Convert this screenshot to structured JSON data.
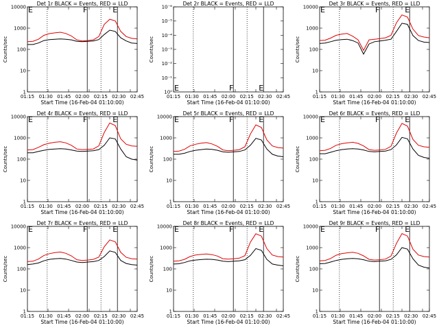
{
  "chart_data": [
    {
      "panel": "1r",
      "title": "Det 1r BLACK = Events, RED = LLD",
      "type": "line",
      "ylabel": "Counts/sec",
      "xlabel": "Start Time (16-Feb-04 01:10:00)",
      "x_ticks": [
        "01:15",
        "01:30",
        "01:45",
        "02:00",
        "02:15",
        "02:30",
        "02:45"
      ],
      "y_ticks": [
        "1",
        "10",
        "100",
        "1000",
        "10000"
      ],
      "ylim": [
        1,
        10000
      ],
      "yscale": "log",
      "markers": [
        "E",
        "F",
        "E"
      ],
      "time": [
        0,
        5,
        10,
        15,
        20,
        25,
        30,
        35,
        40,
        45,
        50,
        55,
        60,
        65,
        70,
        75,
        80,
        85,
        90,
        95,
        100
      ],
      "series": [
        {
          "color": "#000000",
          "values": [
            170,
            170,
            200,
            260,
            290,
            300,
            310,
            300,
            280,
            240,
            230,
            240,
            250,
            290,
            500,
            800,
            700,
            350,
            250,
            200,
            190
          ]
        },
        {
          "color": "#e00000",
          "values": [
            230,
            240,
            300,
            460,
            550,
            600,
            640,
            560,
            430,
            280,
            250,
            260,
            280,
            400,
            1500,
            2600,
            2200,
            700,
            400,
            330,
            310
          ]
        }
      ]
    },
    {
      "panel": "2r",
      "title": "Det 2r BLACK = Events, RED = LLD",
      "type": "line",
      "ylabel": "Counts/sec",
      "xlabel": "Start Time (16-Feb-04 01:10:00)",
      "x_ticks": [
        "01:15",
        "01:30",
        "01:45",
        "02:00",
        "02:15",
        "02:30",
        "02:45"
      ],
      "y_ticks": [
        "10⁰",
        "10⁻¹",
        "10⁻²",
        "10⁻³",
        "10⁻⁴",
        "10⁻⁵",
        "10⁻⁶"
      ],
      "ylim": [
        1,
        1e-06
      ],
      "yscale": "log",
      "markers": [
        "E",
        "F",
        "E"
      ],
      "time": [],
      "series": []
    },
    {
      "panel": "3r",
      "title": "Det 3r BLACK = Events, RED = LLD",
      "type": "line",
      "ylabel": "Counts/sec",
      "xlabel": "Start Time (16-Feb-04 01:10:00)",
      "x_ticks": [
        "01:15",
        "01:30",
        "01:45",
        "02:00",
        "02:15",
        "02:30",
        "02:45"
      ],
      "y_ticks": [
        "1",
        "10",
        "100",
        "1000",
        "10000"
      ],
      "ylim": [
        1,
        10000
      ],
      "yscale": "log",
      "markers": [
        "E",
        "F",
        "E"
      ],
      "time": [
        0,
        5,
        10,
        15,
        20,
        25,
        30,
        35,
        40,
        45,
        50,
        55,
        60,
        65,
        70,
        75,
        80,
        85,
        90,
        95,
        100
      ],
      "series": [
        {
          "color": "#000000",
          "values": [
            190,
            200,
            230,
            270,
            290,
            300,
            260,
            200,
            60,
            180,
            230,
            250,
            270,
            300,
            700,
            1700,
            1500,
            450,
            260,
            220,
            210
          ]
        },
        {
          "color": "#e00000",
          "values": [
            260,
            270,
            340,
            460,
            520,
            560,
            420,
            280,
            90,
            280,
            300,
            320,
            350,
            460,
            1800,
            4200,
            3300,
            900,
            450,
            380,
            350
          ]
        }
      ]
    },
    {
      "panel": "4r",
      "title": "Det 4r BLACK = Events, RED = LLD",
      "type": "line",
      "ylabel": "Counts/sec",
      "xlabel": "Start Time (16-Feb-04 01:10:00)",
      "x_ticks": [
        "01:15",
        "01:30",
        "01:45",
        "02:00",
        "02:15",
        "02:30",
        "02:45"
      ],
      "y_ticks": [
        "1",
        "10",
        "100",
        "1000",
        "10000"
      ],
      "ylim": [
        1,
        10000
      ],
      "yscale": "log",
      "markers": [
        "E",
        "F",
        "E"
      ],
      "time": [
        0,
        5,
        10,
        15,
        20,
        25,
        30,
        35,
        40,
        45,
        50,
        55,
        60,
        65,
        70,
        75,
        80,
        85,
        90,
        95,
        100
      ],
      "series": [
        {
          "color": "#000000",
          "values": [
            200,
            200,
            230,
            260,
            290,
            300,
            310,
            300,
            270,
            240,
            230,
            240,
            250,
            280,
            450,
            1000,
            900,
            300,
            130,
            100,
            90
          ]
        },
        {
          "color": "#e00000",
          "values": [
            270,
            280,
            360,
            480,
            560,
            620,
            660,
            580,
            450,
            300,
            280,
            290,
            300,
            420,
            1800,
            5000,
            3800,
            900,
            500,
            420,
            400
          ]
        }
      ]
    },
    {
      "panel": "5r",
      "title": "Det 5r BLACK = Events, RED = LLD",
      "type": "line",
      "ylabel": "Counts/sec",
      "xlabel": "Start Time (16-Feb-04 01:10:00)",
      "x_ticks": [
        "01:15",
        "01:30",
        "01:45",
        "02:00",
        "02:15",
        "02:30",
        "02:45"
      ],
      "y_ticks": [
        "1",
        "10",
        "100",
        "1000",
        "10000"
      ],
      "ylim": [
        1,
        10000
      ],
      "yscale": "log",
      "markers": [
        "E",
        "F",
        "E"
      ],
      "time": [
        0,
        5,
        10,
        15,
        20,
        25,
        30,
        35,
        40,
        45,
        50,
        55,
        60,
        65,
        70,
        75,
        80,
        85,
        90,
        95,
        100
      ],
      "series": [
        {
          "color": "#000000",
          "values": [
            170,
            170,
            190,
            230,
            260,
            280,
            300,
            290,
            260,
            220,
            210,
            220,
            230,
            270,
            450,
            950,
            800,
            300,
            170,
            140,
            130
          ]
        },
        {
          "color": "#e00000",
          "values": [
            230,
            240,
            290,
            420,
            500,
            560,
            600,
            520,
            400,
            270,
            250,
            260,
            280,
            380,
            1500,
            4100,
            3100,
            800,
            420,
            350,
            330
          ]
        }
      ]
    },
    {
      "panel": "6r",
      "title": "Det 6r BLACK = Events, RED = LLD",
      "type": "line",
      "ylabel": "Counts/sec",
      "xlabel": "Start Time (16-Feb-04 01:10:00)",
      "x_ticks": [
        "01:15",
        "01:30",
        "01:45",
        "02:00",
        "02:15",
        "02:30",
        "02:45"
      ],
      "y_ticks": [
        "1",
        "10",
        "100",
        "1000",
        "10000"
      ],
      "ylim": [
        1,
        10000
      ],
      "yscale": "log",
      "markers": [
        "E",
        "F",
        "E"
      ],
      "time": [
        0,
        5,
        10,
        15,
        20,
        25,
        30,
        35,
        40,
        45,
        50,
        55,
        60,
        65,
        70,
        75,
        80,
        85,
        90,
        95,
        100
      ],
      "series": [
        {
          "color": "#000000",
          "values": [
            180,
            180,
            210,
            250,
            280,
            300,
            310,
            300,
            270,
            230,
            220,
            230,
            240,
            280,
            470,
            1050,
            900,
            300,
            150,
            120,
            110
          ]
        },
        {
          "color": "#e00000",
          "values": [
            250,
            260,
            320,
            450,
            530,
            580,
            620,
            550,
            420,
            280,
            260,
            270,
            290,
            400,
            1700,
            4800,
            3600,
            850,
            450,
            380,
            360
          ]
        }
      ]
    },
    {
      "panel": "7r",
      "title": "Det 7r BLACK = Events, RED = LLD",
      "type": "line",
      "ylabel": "Counts/sec",
      "xlabel": "Start Time (16-Feb-04 01:10:00)",
      "x_ticks": [
        "01:15",
        "01:30",
        "01:45",
        "02:00",
        "02:15",
        "02:30",
        "02:45"
      ],
      "y_ticks": [
        "1",
        "10",
        "100",
        "1000",
        "10000"
      ],
      "ylim": [
        1,
        10000
      ],
      "yscale": "log",
      "markers": [
        "E",
        "F",
        "E"
      ],
      "time": [
        0,
        5,
        10,
        15,
        20,
        25,
        30,
        35,
        40,
        45,
        50,
        55,
        60,
        65,
        70,
        75,
        80,
        85,
        90,
        95,
        100
      ],
      "series": [
        {
          "color": "#000000",
          "values": [
            160,
            170,
            190,
            240,
            280,
            300,
            310,
            290,
            250,
            210,
            200,
            210,
            220,
            250,
            380,
            700,
            600,
            250,
            180,
            160,
            150
          ]
        },
        {
          "color": "#e00000",
          "values": [
            220,
            230,
            290,
            430,
            520,
            580,
            620,
            540,
            410,
            270,
            250,
            260,
            280,
            360,
            1100,
            2300,
            1900,
            600,
            350,
            300,
            290
          ]
        }
      ]
    },
    {
      "panel": "8r",
      "title": "Det 8r BLACK = Events, RED = LLD",
      "type": "line",
      "ylabel": "Counts/sec",
      "xlabel": "Start Time (16-Feb-04 01:10:00)",
      "x_ticks": [
        "01:15",
        "01:30",
        "01:45",
        "02:00",
        "02:15",
        "02:30",
        "02:45"
      ],
      "y_ticks": [
        "1",
        "10",
        "100",
        "1000",
        "10000"
      ],
      "ylim": [
        1,
        10000
      ],
      "yscale": "log",
      "markers": [
        "E",
        "F",
        "E"
      ],
      "time": [
        0,
        5,
        10,
        15,
        20,
        25,
        30,
        35,
        40,
        45,
        50,
        55,
        60,
        65,
        70,
        75,
        80,
        85,
        90,
        95,
        100
      ],
      "series": [
        {
          "color": "#000000",
          "values": [
            170,
            175,
            200,
            240,
            260,
            275,
            285,
            280,
            260,
            230,
            220,
            230,
            240,
            270,
            430,
            900,
            750,
            280,
            170,
            150,
            140
          ]
        },
        {
          "color": "#e00000",
          "values": [
            230,
            240,
            280,
            380,
            450,
            480,
            500,
            470,
            400,
            300,
            290,
            300,
            320,
            420,
            1800,
            4500,
            3500,
            900,
            450,
            380,
            360
          ]
        }
      ]
    },
    {
      "panel": "9r",
      "title": "Det 9r BLACK = Events, RED = LLD",
      "type": "line",
      "ylabel": "Counts/sec",
      "xlabel": "Start Time (16-Feb-04 01:10:00)",
      "x_ticks": [
        "01:15",
        "01:30",
        "01:45",
        "02:00",
        "02:15",
        "02:30",
        "02:45"
      ],
      "y_ticks": [
        "1",
        "10",
        "100",
        "1000",
        "10000"
      ],
      "ylim": [
        1,
        10000
      ],
      "yscale": "log",
      "markers": [
        "E",
        "F",
        "E"
      ],
      "time": [
        0,
        5,
        10,
        15,
        20,
        25,
        30,
        35,
        40,
        45,
        50,
        55,
        60,
        65,
        70,
        75,
        80,
        85,
        90,
        95,
        100
      ],
      "series": [
        {
          "color": "#000000",
          "values": [
            175,
            180,
            210,
            250,
            280,
            300,
            310,
            300,
            270,
            230,
            220,
            230,
            240,
            280,
            460,
            1000,
            850,
            300,
            150,
            120,
            110
          ]
        },
        {
          "color": "#e00000",
          "values": [
            240,
            250,
            310,
            440,
            520,
            570,
            610,
            540,
            410,
            280,
            260,
            270,
            290,
            400,
            1600,
            4600,
            3500,
            850,
            450,
            380,
            360
          ]
        }
      ]
    }
  ]
}
